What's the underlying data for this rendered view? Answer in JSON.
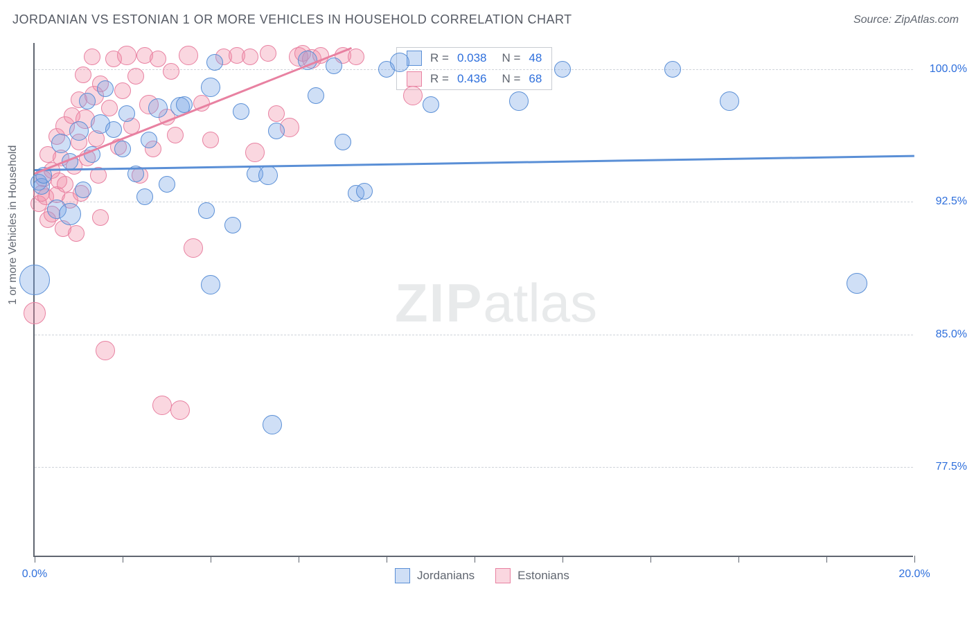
{
  "title": "JORDANIAN VS ESTONIAN 1 OR MORE VEHICLES IN HOUSEHOLD CORRELATION CHART",
  "source": "Source: ZipAtlas.com",
  "yaxis_title": "1 or more Vehicles in Household",
  "watermark": {
    "zip": "ZIP",
    "atlas": "atlas"
  },
  "chart": {
    "type": "scatter-with-trendlines",
    "xlim": [
      0,
      20
    ],
    "ylim": [
      72.4,
      101.5
    ],
    "xticks": [
      0,
      2,
      4,
      6,
      8,
      10,
      12,
      14,
      16,
      18,
      20
    ],
    "xlabels": [
      {
        "x": 0,
        "text": "0.0%"
      },
      {
        "x": 20,
        "text": "20.0%"
      }
    ],
    "ygrids": [
      100.0,
      92.5,
      85.0,
      77.5
    ],
    "ylabels": [
      "100.0%",
      "92.5%",
      "85.0%",
      "77.5%"
    ],
    "background_color": "#ffffff",
    "grid_color": "#cfd3da",
    "axis_color": "#606670",
    "text_color": "#606670",
    "value_color": "#2e6fdc",
    "series": {
      "blue": {
        "name": "Jordanians",
        "color_fill": "rgba(117,163,230,0.35)",
        "color_stroke": "#5a8fd6",
        "R": "0.038",
        "N": "48",
        "trend": {
          "x1": 0,
          "y1": 94.3,
          "x2": 20,
          "y2": 95.1,
          "width": 3
        },
        "points": [
          {
            "x": 0.1,
            "y": 93.6,
            "r": 12
          },
          {
            "x": 0.15,
            "y": 93.4,
            "r": 12
          },
          {
            "x": 0.2,
            "y": 94.0,
            "r": 12
          },
          {
            "x": 0.5,
            "y": 92.1,
            "r": 14
          },
          {
            "x": 0.6,
            "y": 95.8,
            "r": 14
          },
          {
            "x": 0.8,
            "y": 94.8,
            "r": 12
          },
          {
            "x": 0.8,
            "y": 91.8,
            "r": 16
          },
          {
            "x": 1.0,
            "y": 96.5,
            "r": 14
          },
          {
            "x": 1.1,
            "y": 93.2,
            "r": 12
          },
          {
            "x": 1.3,
            "y": 95.2,
            "r": 12
          },
          {
            "x": 1.5,
            "y": 96.9,
            "r": 14
          },
          {
            "x": 1.6,
            "y": 98.9,
            "r": 12
          },
          {
            "x": 1.8,
            "y": 96.6,
            "r": 12
          },
          {
            "x": 2.0,
            "y": 95.5,
            "r": 12
          },
          {
            "x": 2.1,
            "y": 97.5,
            "r": 12
          },
          {
            "x": 2.3,
            "y": 94.1,
            "r": 12
          },
          {
            "x": 2.6,
            "y": 96.0,
            "r": 12
          },
          {
            "x": 2.8,
            "y": 97.8,
            "r": 14
          },
          {
            "x": 3.0,
            "y": 93.5,
            "r": 12
          },
          {
            "x": 3.3,
            "y": 97.9,
            "r": 14
          },
          {
            "x": 3.4,
            "y": 98.0,
            "r": 12
          },
          {
            "x": 4.0,
            "y": 99.0,
            "r": 14
          },
          {
            "x": 4.0,
            "y": 87.8,
            "r": 14
          },
          {
            "x": 3.9,
            "y": 92.0,
            "r": 12
          },
          {
            "x": 4.1,
            "y": 100.4,
            "r": 12
          },
          {
            "x": 4.5,
            "y": 91.2,
            "r": 12
          },
          {
            "x": 5.0,
            "y": 94.1,
            "r": 12
          },
          {
            "x": 5.3,
            "y": 94.0,
            "r": 14
          },
          {
            "x": 5.4,
            "y": 79.9,
            "r": 14
          },
          {
            "x": 5.5,
            "y": 96.5,
            "r": 12
          },
          {
            "x": 6.2,
            "y": 100.5,
            "r": 14
          },
          {
            "x": 6.4,
            "y": 98.5,
            "r": 12
          },
          {
            "x": 6.8,
            "y": 100.2,
            "r": 12
          },
          {
            "x": 7.0,
            "y": 95.9,
            "r": 12
          },
          {
            "x": 7.3,
            "y": 93.0,
            "r": 12
          },
          {
            "x": 7.5,
            "y": 93.1,
            "r": 12
          },
          {
            "x": 8.0,
            "y": 100.0,
            "r": 12
          },
          {
            "x": 8.3,
            "y": 100.4,
            "r": 14
          },
          {
            "x": 9.0,
            "y": 98.0,
            "r": 12
          },
          {
            "x": 11.0,
            "y": 98.2,
            "r": 14
          },
          {
            "x": 12.0,
            "y": 100.0,
            "r": 12
          },
          {
            "x": 14.5,
            "y": 100.0,
            "r": 12
          },
          {
            "x": 15.8,
            "y": 98.2,
            "r": 14
          },
          {
            "x": 18.7,
            "y": 87.9,
            "r": 15
          },
          {
            "x": 0.0,
            "y": 88.1,
            "r": 22
          },
          {
            "x": 2.5,
            "y": 92.8,
            "r": 12
          },
          {
            "x": 4.7,
            "y": 97.6,
            "r": 12
          },
          {
            "x": 1.2,
            "y": 98.2,
            "r": 12
          }
        ]
      },
      "pink": {
        "name": "Estonians",
        "color_fill": "rgba(242,140,166,0.35)",
        "color_stroke": "#e881a1",
        "R": "0.436",
        "N": "68",
        "trend": {
          "x1": 0,
          "y1": 94.1,
          "x2": 7.2,
          "y2": 101.2,
          "width": 3
        },
        "points": [
          {
            "x": 0.0,
            "y": 86.2,
            "r": 16
          },
          {
            "x": 0.1,
            "y": 92.4,
            "r": 12
          },
          {
            "x": 0.15,
            "y": 93.0,
            "r": 12
          },
          {
            "x": 0.2,
            "y": 93.8,
            "r": 12
          },
          {
            "x": 0.25,
            "y": 92.8,
            "r": 12
          },
          {
            "x": 0.3,
            "y": 91.5,
            "r": 12
          },
          {
            "x": 0.3,
            "y": 95.2,
            "r": 12
          },
          {
            "x": 0.4,
            "y": 94.3,
            "r": 12
          },
          {
            "x": 0.4,
            "y": 91.8,
            "r": 12
          },
          {
            "x": 0.5,
            "y": 92.9,
            "r": 12
          },
          {
            "x": 0.5,
            "y": 96.2,
            "r": 12
          },
          {
            "x": 0.55,
            "y": 93.7,
            "r": 12
          },
          {
            "x": 0.6,
            "y": 95.0,
            "r": 12
          },
          {
            "x": 0.65,
            "y": 91.0,
            "r": 12
          },
          {
            "x": 0.7,
            "y": 96.8,
            "r": 14
          },
          {
            "x": 0.7,
            "y": 93.5,
            "r": 12
          },
          {
            "x": 0.8,
            "y": 92.6,
            "r": 12
          },
          {
            "x": 0.85,
            "y": 97.4,
            "r": 12
          },
          {
            "x": 0.9,
            "y": 94.5,
            "r": 12
          },
          {
            "x": 0.95,
            "y": 90.7,
            "r": 12
          },
          {
            "x": 1.0,
            "y": 98.3,
            "r": 12
          },
          {
            "x": 1.0,
            "y": 95.9,
            "r": 12
          },
          {
            "x": 1.05,
            "y": 93.0,
            "r": 12
          },
          {
            "x": 1.1,
            "y": 99.7,
            "r": 12
          },
          {
            "x": 1.15,
            "y": 97.2,
            "r": 14
          },
          {
            "x": 1.2,
            "y": 95.0,
            "r": 12
          },
          {
            "x": 1.3,
            "y": 100.7,
            "r": 12
          },
          {
            "x": 1.35,
            "y": 98.5,
            "r": 14
          },
          {
            "x": 1.4,
            "y": 96.1,
            "r": 12
          },
          {
            "x": 1.45,
            "y": 94.0,
            "r": 12
          },
          {
            "x": 1.5,
            "y": 91.6,
            "r": 12
          },
          {
            "x": 1.5,
            "y": 99.2,
            "r": 12
          },
          {
            "x": 1.6,
            "y": 84.1,
            "r": 14
          },
          {
            "x": 1.7,
            "y": 97.8,
            "r": 12
          },
          {
            "x": 1.8,
            "y": 100.6,
            "r": 12
          },
          {
            "x": 1.9,
            "y": 95.6,
            "r": 12
          },
          {
            "x": 2.0,
            "y": 98.8,
            "r": 12
          },
          {
            "x": 2.1,
            "y": 100.8,
            "r": 14
          },
          {
            "x": 2.2,
            "y": 96.8,
            "r": 12
          },
          {
            "x": 2.3,
            "y": 99.6,
            "r": 12
          },
          {
            "x": 2.4,
            "y": 94.0,
            "r": 12
          },
          {
            "x": 2.5,
            "y": 100.8,
            "r": 12
          },
          {
            "x": 2.6,
            "y": 98.0,
            "r": 14
          },
          {
            "x": 2.7,
            "y": 95.5,
            "r": 12
          },
          {
            "x": 2.8,
            "y": 100.6,
            "r": 12
          },
          {
            "x": 2.9,
            "y": 81.0,
            "r": 14
          },
          {
            "x": 3.0,
            "y": 97.3,
            "r": 12
          },
          {
            "x": 3.1,
            "y": 99.9,
            "r": 12
          },
          {
            "x": 3.2,
            "y": 96.3,
            "r": 12
          },
          {
            "x": 3.3,
            "y": 80.7,
            "r": 14
          },
          {
            "x": 3.5,
            "y": 100.8,
            "r": 14
          },
          {
            "x": 3.6,
            "y": 89.9,
            "r": 14
          },
          {
            "x": 3.8,
            "y": 98.1,
            "r": 12
          },
          {
            "x": 4.0,
            "y": 96.0,
            "r": 12
          },
          {
            "x": 4.3,
            "y": 100.7,
            "r": 12
          },
          {
            "x": 4.6,
            "y": 100.8,
            "r": 12
          },
          {
            "x": 4.9,
            "y": 100.7,
            "r": 12
          },
          {
            "x": 5.0,
            "y": 95.3,
            "r": 14
          },
          {
            "x": 5.3,
            "y": 100.9,
            "r": 12
          },
          {
            "x": 5.5,
            "y": 97.5,
            "r": 12
          },
          {
            "x": 5.8,
            "y": 96.7,
            "r": 14
          },
          {
            "x": 6.0,
            "y": 100.7,
            "r": 14
          },
          {
            "x": 6.1,
            "y": 100.9,
            "r": 12
          },
          {
            "x": 6.3,
            "y": 100.6,
            "r": 14
          },
          {
            "x": 6.5,
            "y": 100.8,
            "r": 12
          },
          {
            "x": 7.0,
            "y": 100.8,
            "r": 12
          },
          {
            "x": 7.3,
            "y": 100.7,
            "r": 12
          },
          {
            "x": 8.6,
            "y": 98.5,
            "r": 14
          }
        ]
      }
    }
  },
  "legend_top": {
    "labels": {
      "R": "R =",
      "N": "N ="
    }
  },
  "legend_bottom": {
    "items": [
      {
        "label": "Jordanians",
        "swatch": "b"
      },
      {
        "label": "Estonians",
        "swatch": "p"
      }
    ]
  }
}
